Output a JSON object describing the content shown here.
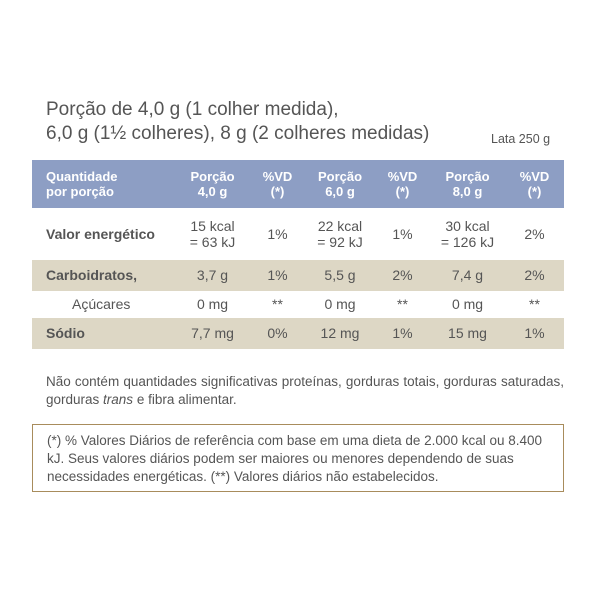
{
  "header": {
    "title_lines": [
      "Porção de 4,0 g (1 colher medida),",
      "6,0 g (1½ colheres), 8 g (2 colheres medidas)"
    ],
    "package": "Lata 250 g"
  },
  "table": {
    "head": [
      [
        "Quantidade",
        "por porção"
      ],
      [
        "Porção",
        "4,0 g"
      ],
      [
        "%VD",
        "(*)"
      ],
      [
        "Porção",
        "6,0 g"
      ],
      [
        "%VD",
        "(*)"
      ],
      [
        "Porção",
        "8,0 g"
      ],
      [
        "%VD",
        "(*)"
      ]
    ],
    "rows": [
      [
        [
          "Valor energético"
        ],
        [
          "15 kcal",
          "= 63 kJ"
        ],
        [
          "1%"
        ],
        [
          "22 kcal",
          "= 92 kJ"
        ],
        [
          "1%"
        ],
        [
          "30 kcal",
          "= 126 kJ"
        ],
        [
          "2%"
        ]
      ],
      [
        [
          "Carboidratos,"
        ],
        [
          "3,7 g"
        ],
        [
          "1%"
        ],
        [
          "5,5 g"
        ],
        [
          "2%"
        ],
        [
          "7,4 g"
        ],
        [
          "2%"
        ]
      ],
      [
        [
          "Açúcares"
        ],
        [
          "0 mg"
        ],
        [
          "**"
        ],
        [
          "0 mg"
        ],
        [
          "**"
        ],
        [
          "0 mg"
        ],
        [
          "**"
        ]
      ],
      [
        [
          "Sódio"
        ],
        [
          "7,7 mg"
        ],
        [
          "0%"
        ],
        [
          "12 mg"
        ],
        [
          "1%"
        ],
        [
          "15 mg"
        ],
        [
          "1%"
        ]
      ]
    ]
  },
  "note": {
    "parts": [
      "Não contém quantidades significativas proteínas, gorduras totais, gorduras saturadas, gorduras ",
      "trans",
      " e fibra alimentar."
    ]
  },
  "footnote": "(*) % Valores Diários de referência com base em uma dieta de 2.000 kcal ou 8.400 kJ. Seus valores diários podem ser maiores ou menores dependendo de suas necessidades energéticas. (**) Valores diários não estabelecidos."
}
